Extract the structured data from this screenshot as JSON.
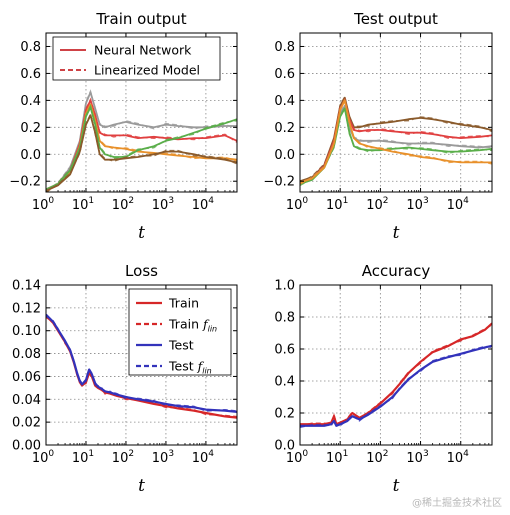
{
  "colors": {
    "neural_network": "#c8272b",
    "train_red": "#d62728",
    "test_blue": "#3333bb",
    "traj": [
      "#e04040",
      "#8a5a2b",
      "#e8902a",
      "#5aae4a",
      "#9a9a9a"
    ]
  },
  "watermark": "@稀土掘金技术社区",
  "chart_data": [
    {
      "id": "train_output",
      "type": "line",
      "title": "Train output",
      "xlabel": "t",
      "xscale": "log",
      "xlim": [
        1,
        60000
      ],
      "ylim": [
        -0.28,
        0.9
      ],
      "xticks": [
        "1",
        "10",
        "100",
        "1000",
        "10000"
      ],
      "xtick_labels": [
        [
          "10",
          "0"
        ],
        [
          "10",
          "1"
        ],
        [
          "10",
          "2"
        ],
        [
          "10",
          "3"
        ],
        [
          "10",
          "4"
        ]
      ],
      "yticks": [
        -0.2,
        0.0,
        0.2,
        0.4,
        0.6,
        0.8
      ],
      "ytick_labels": [
        "−0.2",
        "0.0",
        "0.2",
        "0.4",
        "0.6",
        "0.8"
      ],
      "grid": true,
      "legend": {
        "placement": "top-left",
        "entries": [
          {
            "label": "Neural Network",
            "style": "solid",
            "color": "#c8272b"
          },
          {
            "label": "Linearized Model",
            "style": "dashed",
            "color": "#c8272b"
          }
        ]
      },
      "series": [
        {
          "color": "#9a9a9a",
          "x": [
            1,
            2,
            4,
            7,
            10,
            13,
            17,
            22,
            30,
            50,
            100,
            200,
            500,
            1000,
            2000,
            5000,
            10000,
            30000,
            60000
          ],
          "y": [
            -0.27,
            -0.22,
            -0.1,
            0.1,
            0.38,
            0.46,
            0.34,
            0.22,
            0.2,
            0.22,
            0.24,
            0.22,
            0.2,
            0.22,
            0.21,
            0.2,
            0.2,
            0.21,
            0.21
          ]
        },
        {
          "color": "#e04040",
          "x": [
            1,
            2,
            4,
            7,
            10,
            13,
            17,
            22,
            30,
            50,
            100,
            200,
            500,
            1000,
            2000,
            5000,
            10000,
            30000,
            60000
          ],
          "y": [
            -0.26,
            -0.22,
            -0.12,
            0.08,
            0.33,
            0.4,
            0.29,
            0.16,
            0.14,
            0.14,
            0.14,
            0.12,
            0.13,
            0.12,
            0.11,
            0.12,
            0.12,
            0.14,
            0.1
          ]
        },
        {
          "color": "#e8902a",
          "x": [
            1,
            2,
            4,
            7,
            10,
            13,
            17,
            22,
            30,
            50,
            100,
            200,
            500,
            1000,
            2000,
            5000,
            10000,
            30000,
            60000
          ],
          "y": [
            -0.27,
            -0.23,
            -0.13,
            0.06,
            0.3,
            0.37,
            0.25,
            0.1,
            0.06,
            0.05,
            0.04,
            0.02,
            0.01,
            0.0,
            -0.01,
            -0.02,
            -0.03,
            -0.03,
            -0.04
          ]
        },
        {
          "color": "#5aae4a",
          "x": [
            1,
            2,
            4,
            7,
            10,
            13,
            17,
            22,
            30,
            50,
            100,
            200,
            500,
            1000,
            2000,
            5000,
            10000,
            30000,
            60000
          ],
          "y": [
            -0.26,
            -0.22,
            -0.12,
            0.05,
            0.28,
            0.35,
            0.22,
            0.05,
            0.0,
            -0.02,
            -0.02,
            0.03,
            0.06,
            0.1,
            0.12,
            0.16,
            0.19,
            0.23,
            0.26
          ]
        },
        {
          "color": "#8a5a2b",
          "x": [
            1,
            2,
            4,
            7,
            10,
            13,
            17,
            22,
            30,
            50,
            100,
            200,
            500,
            1000,
            2000,
            5000,
            10000,
            30000,
            60000
          ],
          "y": [
            -0.27,
            -0.23,
            -0.15,
            0.02,
            0.22,
            0.29,
            0.16,
            0.0,
            -0.04,
            -0.04,
            -0.03,
            -0.02,
            0.0,
            0.02,
            0.02,
            0.0,
            -0.02,
            -0.04,
            -0.06
          ]
        }
      ]
    },
    {
      "id": "test_output",
      "type": "line",
      "title": "Test output",
      "xlabel": "t",
      "xscale": "log",
      "xlim": [
        1,
        60000
      ],
      "ylim": [
        -0.28,
        0.9
      ],
      "xticks": [
        "1",
        "10",
        "100",
        "1000",
        "10000"
      ],
      "xtick_labels": [
        [
          "10",
          "0"
        ],
        [
          "10",
          "1"
        ],
        [
          "10",
          "2"
        ],
        [
          "10",
          "3"
        ],
        [
          "10",
          "4"
        ]
      ],
      "yticks": [
        -0.2,
        0.0,
        0.2,
        0.4,
        0.6,
        0.8
      ],
      "ytick_labels": [
        "−0.2",
        "0.0",
        "0.2",
        "0.4",
        "0.6",
        "0.8"
      ],
      "grid": true,
      "series": [
        {
          "color": "#8a5a2b",
          "x": [
            1,
            2,
            4,
            7,
            10,
            13,
            17,
            22,
            30,
            50,
            100,
            200,
            500,
            1000,
            2000,
            5000,
            10000,
            30000,
            60000
          ],
          "y": [
            -0.2,
            -0.17,
            -0.08,
            0.12,
            0.36,
            0.42,
            0.28,
            0.2,
            0.2,
            0.22,
            0.23,
            0.24,
            0.26,
            0.27,
            0.26,
            0.24,
            0.22,
            0.2,
            0.18
          ]
        },
        {
          "color": "#e04040",
          "x": [
            1,
            2,
            4,
            7,
            10,
            13,
            17,
            22,
            30,
            50,
            100,
            200,
            500,
            1000,
            2000,
            5000,
            10000,
            30000,
            60000
          ],
          "y": [
            -0.21,
            -0.18,
            -0.09,
            0.1,
            0.34,
            0.4,
            0.26,
            0.18,
            0.17,
            0.18,
            0.18,
            0.17,
            0.16,
            0.16,
            0.15,
            0.13,
            0.12,
            0.13,
            0.14
          ]
        },
        {
          "color": "#9a9a9a",
          "x": [
            1,
            2,
            4,
            7,
            10,
            13,
            17,
            22,
            30,
            50,
            100,
            200,
            500,
            1000,
            2000,
            5000,
            10000,
            30000,
            60000
          ],
          "y": [
            -0.21,
            -0.18,
            -0.1,
            0.08,
            0.3,
            0.36,
            0.2,
            0.12,
            0.1,
            0.1,
            0.1,
            0.09,
            0.08,
            0.08,
            0.08,
            0.07,
            0.06,
            0.05,
            0.06
          ]
        },
        {
          "color": "#5aae4a",
          "x": [
            1,
            2,
            4,
            7,
            10,
            13,
            17,
            22,
            30,
            50,
            100,
            200,
            500,
            1000,
            2000,
            5000,
            10000,
            30000,
            60000
          ],
          "y": [
            -0.22,
            -0.19,
            -0.1,
            0.06,
            0.28,
            0.34,
            0.16,
            0.06,
            0.04,
            0.03,
            0.03,
            0.04,
            0.05,
            0.04,
            0.03,
            0.02,
            0.02,
            0.03,
            0.04
          ]
        },
        {
          "color": "#e8902a",
          "x": [
            1,
            2,
            4,
            7,
            10,
            13,
            17,
            22,
            30,
            50,
            100,
            200,
            500,
            1000,
            2000,
            5000,
            10000,
            30000,
            60000
          ],
          "y": [
            -0.21,
            -0.18,
            -0.1,
            0.08,
            0.33,
            0.4,
            0.24,
            0.12,
            0.08,
            0.06,
            0.04,
            0.02,
            0.0,
            -0.02,
            -0.03,
            -0.05,
            -0.06,
            -0.06,
            -0.06
          ]
        }
      ]
    },
    {
      "id": "loss",
      "type": "line",
      "title": "Loss",
      "xlabel": "t",
      "xscale": "log",
      "xlim": [
        1,
        60000
      ],
      "ylim": [
        0.0,
        0.14
      ],
      "xticks": [
        "1",
        "10",
        "100",
        "1000",
        "10000"
      ],
      "xtick_labels": [
        [
          "10",
          "0"
        ],
        [
          "10",
          "1"
        ],
        [
          "10",
          "2"
        ],
        [
          "10",
          "3"
        ],
        [
          "10",
          "4"
        ]
      ],
      "yticks": [
        0.0,
        0.02,
        0.04,
        0.06,
        0.08,
        0.1,
        0.12,
        0.14
      ],
      "ytick_labels": [
        "0.00",
        "0.02",
        "0.04",
        "0.06",
        "0.08",
        "0.10",
        "0.12",
        "0.14"
      ],
      "grid": true,
      "legend": {
        "placement": "top-right",
        "entries": [
          {
            "label": "Train",
            "style": "solid",
            "color": "#d62728"
          },
          {
            "label": "Train",
            "sub": "lin",
            "style": "dashed",
            "color": "#d62728"
          },
          {
            "label": "Test",
            "style": "solid",
            "color": "#3333bb"
          },
          {
            "label": "Test",
            "sub": "lin",
            "style": "dashed",
            "color": "#3333bb"
          }
        ]
      },
      "series": [
        {
          "name": "Train",
          "color": "#d62728",
          "x": [
            1,
            1.5,
            2,
            3,
            4,
            5,
            6,
            7,
            8,
            10,
            12,
            14,
            17,
            20,
            25,
            30,
            40,
            60,
            100,
            200,
            500,
            1000,
            2000,
            5000,
            10000,
            30000,
            60000
          ],
          "y": [
            0.113,
            0.107,
            0.1,
            0.09,
            0.082,
            0.072,
            0.062,
            0.055,
            0.052,
            0.055,
            0.063,
            0.06,
            0.052,
            0.05,
            0.048,
            0.046,
            0.045,
            0.043,
            0.041,
            0.039,
            0.036,
            0.034,
            0.032,
            0.03,
            0.028,
            0.025,
            0.024
          ]
        },
        {
          "name": "Test",
          "color": "#3333bb",
          "x": [
            1,
            1.5,
            2,
            3,
            4,
            5,
            6,
            7,
            8,
            10,
            12,
            14,
            17,
            20,
            25,
            30,
            40,
            60,
            100,
            200,
            500,
            1000,
            2000,
            5000,
            10000,
            30000,
            60000
          ],
          "y": [
            0.114,
            0.108,
            0.101,
            0.091,
            0.083,
            0.073,
            0.063,
            0.056,
            0.053,
            0.057,
            0.066,
            0.062,
            0.054,
            0.051,
            0.049,
            0.047,
            0.046,
            0.044,
            0.042,
            0.04,
            0.038,
            0.036,
            0.034,
            0.033,
            0.031,
            0.03,
            0.029
          ]
        }
      ]
    },
    {
      "id": "accuracy",
      "type": "line",
      "title": "Accuracy",
      "xlabel": "t",
      "xscale": "log",
      "xlim": [
        1,
        60000
      ],
      "ylim": [
        0.0,
        1.0
      ],
      "xticks": [
        "1",
        "10",
        "100",
        "1000",
        "10000"
      ],
      "xtick_labels": [
        [
          "10",
          "0"
        ],
        [
          "10",
          "1"
        ],
        [
          "10",
          "2"
        ],
        [
          "10",
          "3"
        ],
        [
          "10",
          "4"
        ]
      ],
      "yticks": [
        0.0,
        0.2,
        0.4,
        0.6,
        0.8,
        1.0
      ],
      "ytick_labels": [
        "0.0",
        "0.2",
        "0.4",
        "0.6",
        "0.8",
        "1.0"
      ],
      "grid": true,
      "series": [
        {
          "name": "Train",
          "color": "#d62728",
          "x": [
            1,
            2,
            4,
            6,
            7,
            8,
            10,
            15,
            20,
            30,
            50,
            100,
            200,
            300,
            500,
            1000,
            2000,
            5000,
            10000,
            20000,
            40000,
            60000
          ],
          "y": [
            0.13,
            0.13,
            0.13,
            0.14,
            0.18,
            0.13,
            0.14,
            0.16,
            0.2,
            0.17,
            0.2,
            0.26,
            0.33,
            0.38,
            0.45,
            0.52,
            0.58,
            0.62,
            0.66,
            0.68,
            0.72,
            0.76
          ]
        },
        {
          "name": "Test",
          "color": "#3333bb",
          "x": [
            1,
            2,
            4,
            6,
            7,
            8,
            10,
            15,
            20,
            30,
            50,
            100,
            200,
            300,
            500,
            1000,
            2000,
            5000,
            10000,
            20000,
            40000,
            60000
          ],
          "y": [
            0.12,
            0.12,
            0.12,
            0.13,
            0.15,
            0.12,
            0.13,
            0.15,
            0.18,
            0.16,
            0.19,
            0.24,
            0.3,
            0.35,
            0.41,
            0.47,
            0.52,
            0.55,
            0.57,
            0.59,
            0.61,
            0.62
          ]
        }
      ]
    }
  ]
}
